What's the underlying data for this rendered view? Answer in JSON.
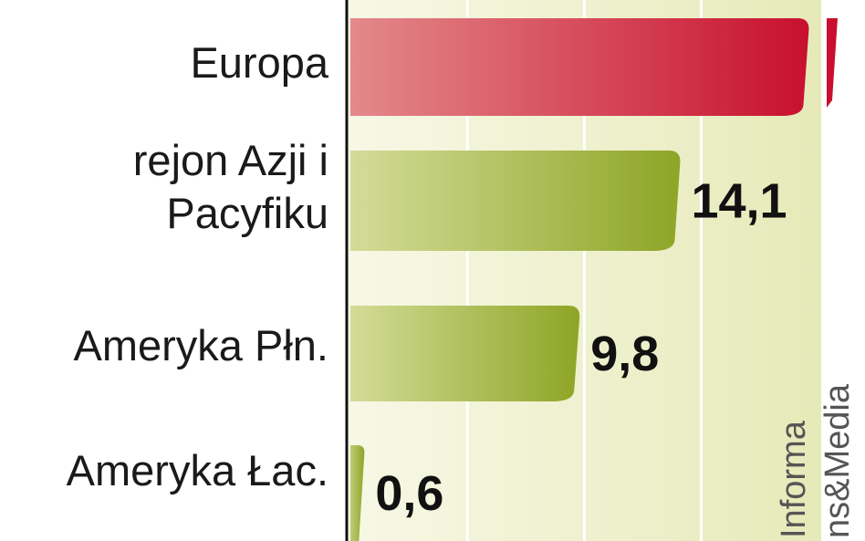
{
  "chart_data": {
    "type": "hbar",
    "categories": [
      "Europa",
      "rejon Azji i Pacyfiku",
      "Ameryka Płn.",
      "Ameryka Łac."
    ],
    "values": [
      19.6,
      14.1,
      9.8,
      0.6
    ],
    "value_labels": [
      null,
      "14,1",
      "9,8",
      "0,6"
    ],
    "colors": [
      "#c8102e",
      "#93ab2c",
      "#93ab2c",
      "#93ab2c"
    ],
    "xlim": [
      0,
      22
    ],
    "xticks": [
      5,
      10,
      15
    ],
    "grid": true,
    "source": [
      "Informa",
      "ns&Media"
    ]
  }
}
